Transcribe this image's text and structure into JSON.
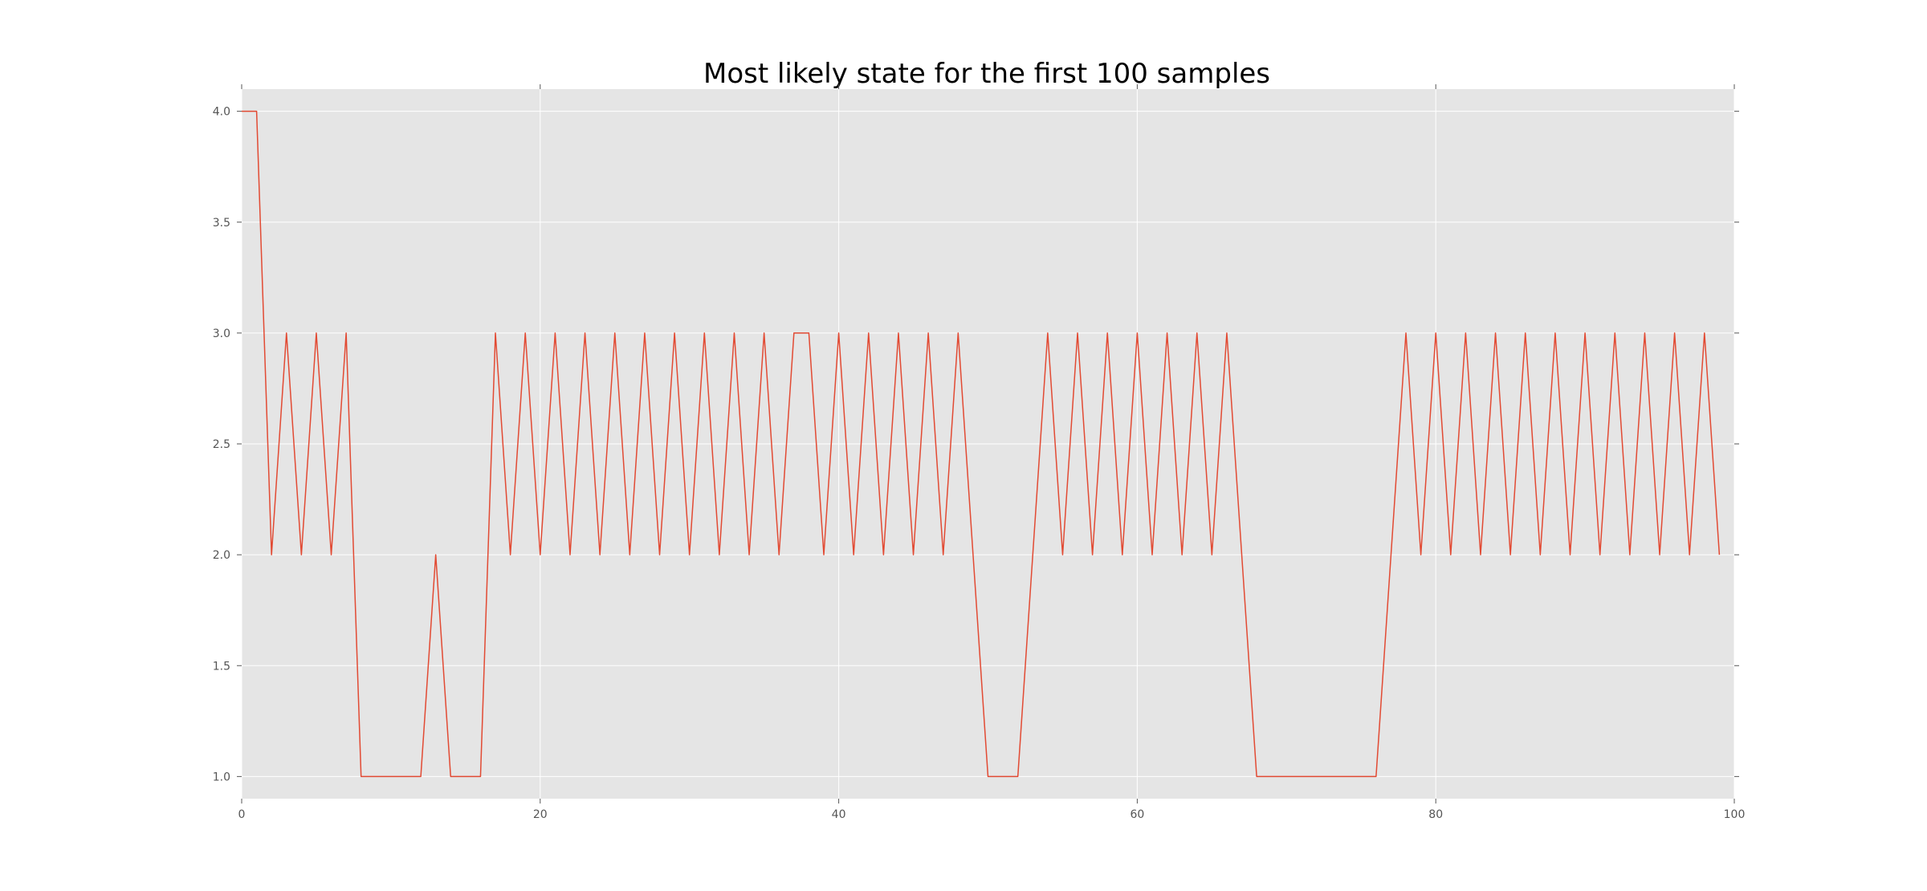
{
  "chart_data": {
    "type": "line",
    "title": "Most likely state for the first 100 samples",
    "xlabel": "",
    "ylabel": "",
    "xlim": [
      0,
      100
    ],
    "ylim": [
      0.9,
      4.1
    ],
    "x_ticks": [
      "0",
      "20",
      "40",
      "60",
      "80",
      "100"
    ],
    "y_ticks": [
      "1.0",
      "1.5",
      "2.0",
      "2.5",
      "3.0",
      "3.5",
      "4.0"
    ],
    "grid": true,
    "legend": "none",
    "colors": {
      "line": "#e24a33",
      "plot_bg": "#e5e5e5",
      "grid": "#ffffff",
      "text": "#555555"
    },
    "series": [
      {
        "x": [
          0,
          1,
          2,
          3,
          4,
          5,
          6,
          7,
          8,
          9,
          10,
          11,
          12,
          13,
          14,
          15,
          16,
          17,
          18,
          19,
          20,
          21,
          22,
          23,
          24,
          25,
          26,
          27,
          28,
          29,
          30,
          31,
          32,
          33,
          34,
          35,
          36,
          37,
          38,
          39,
          40,
          41,
          42,
          43,
          44,
          45,
          46,
          47,
          48,
          49,
          50,
          51,
          52,
          53,
          54,
          55,
          56,
          57,
          58,
          59,
          60,
          61,
          62,
          63,
          64,
          65,
          66,
          67,
          68,
          69,
          70,
          71,
          72,
          73,
          74,
          75,
          76,
          77,
          78,
          79,
          80,
          81,
          82,
          83,
          84,
          85,
          86,
          87,
          88,
          89,
          90,
          91,
          92,
          93,
          94,
          95,
          96,
          97,
          98,
          99
        ],
        "values": [
          4,
          4,
          2,
          3,
          2,
          3,
          2,
          3,
          1,
          1,
          1,
          1,
          1,
          2,
          1,
          1,
          1,
          3,
          2,
          3,
          2,
          3,
          2,
          3,
          2,
          3,
          2,
          3,
          2,
          3,
          2,
          3,
          2,
          3,
          2,
          3,
          2,
          3,
          3,
          2,
          3,
          2,
          3,
          2,
          3,
          2,
          3,
          2,
          3,
          2,
          1,
          1,
          1,
          2,
          3,
          2,
          3,
          2,
          3,
          2,
          3,
          2,
          3,
          2,
          3,
          2,
          3,
          2,
          1,
          1,
          1,
          1,
          1,
          1,
          1,
          1,
          1,
          2,
          3,
          2,
          3,
          2,
          3,
          2,
          3,
          2,
          3,
          2,
          3,
          2,
          3,
          2,
          3,
          2,
          3,
          2,
          3,
          2,
          3,
          2
        ]
      }
    ]
  }
}
